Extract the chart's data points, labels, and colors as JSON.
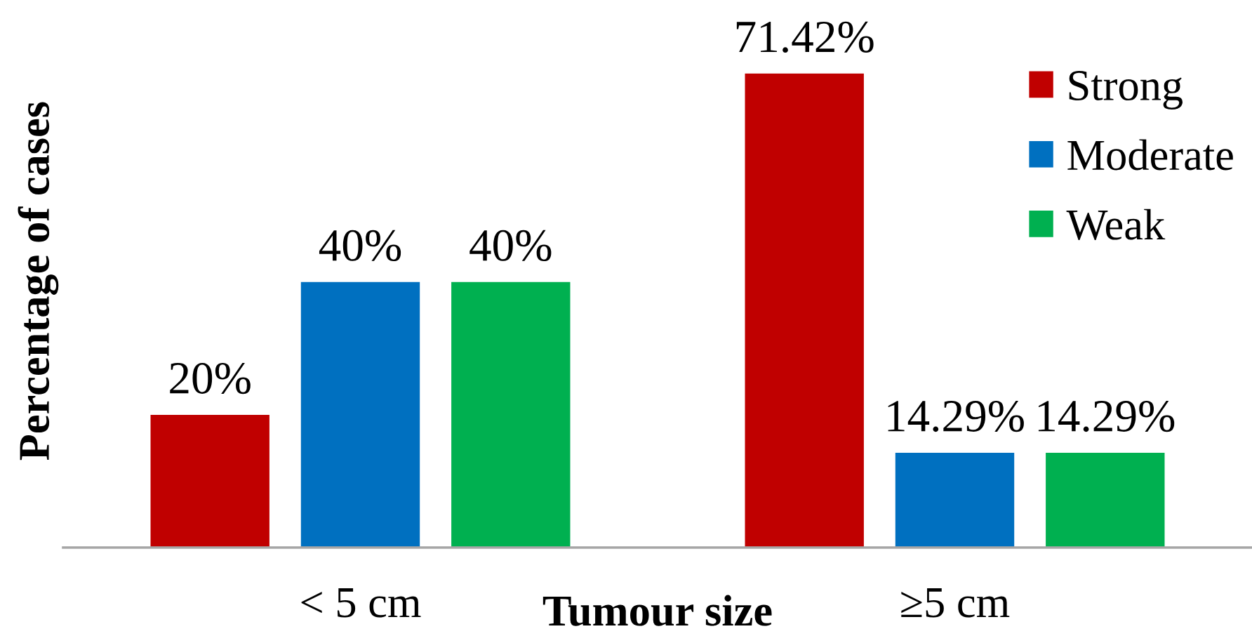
{
  "chart_data": {
    "type": "bar",
    "xlabel": "Tumour size",
    "ylabel": "Percentage of cases",
    "categories": [
      "< 5 cm",
      "≥5 cm"
    ],
    "series": [
      {
        "name": "Strong",
        "color": "#c00000",
        "values": [
          20,
          71.42
        ],
        "value_labels": [
          "20%",
          "71.42%"
        ]
      },
      {
        "name": "Moderate",
        "color": "#0070c0",
        "values": [
          40,
          14.29
        ],
        "value_labels": [
          "40%",
          "14.29%"
        ]
      },
      {
        "name": "Weak",
        "color": "#00b050",
        "values": [
          40,
          14.29
        ],
        "value_labels": [
          "40%",
          "14.29%"
        ]
      }
    ],
    "legend": "top right",
    "grid": false
  }
}
